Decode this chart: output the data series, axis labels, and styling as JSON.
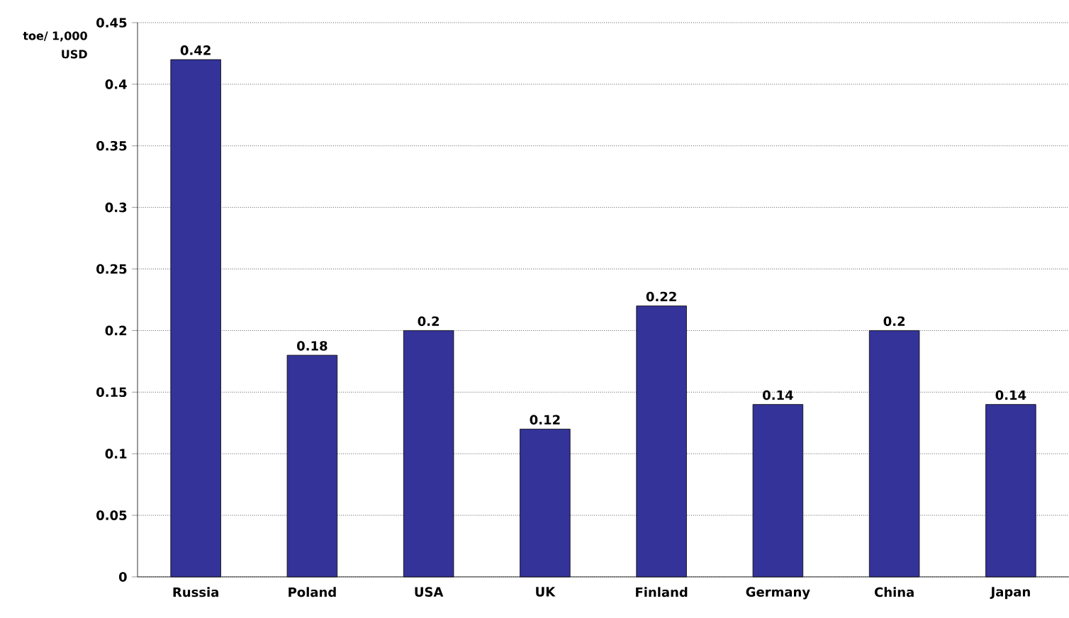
{
  "chart_data": {
    "type": "bar",
    "ylabel": "toe/ 1,000 USD",
    "categories": [
      "Russia",
      "Poland",
      "USA",
      "UK",
      "Finland",
      "Germany",
      "China",
      "Japan"
    ],
    "values": [
      0.42,
      0.18,
      0.2,
      0.12,
      0.22,
      0.14,
      0.2,
      0.14
    ],
    "color": "#333399",
    "data_labels": true,
    "grid": "y",
    "ylim": [
      0,
      0.45
    ],
    "yticks": [
      0,
      0.05,
      0.1,
      0.15,
      0.2,
      0.25,
      0.3,
      0.35,
      0.4,
      0.45
    ]
  }
}
